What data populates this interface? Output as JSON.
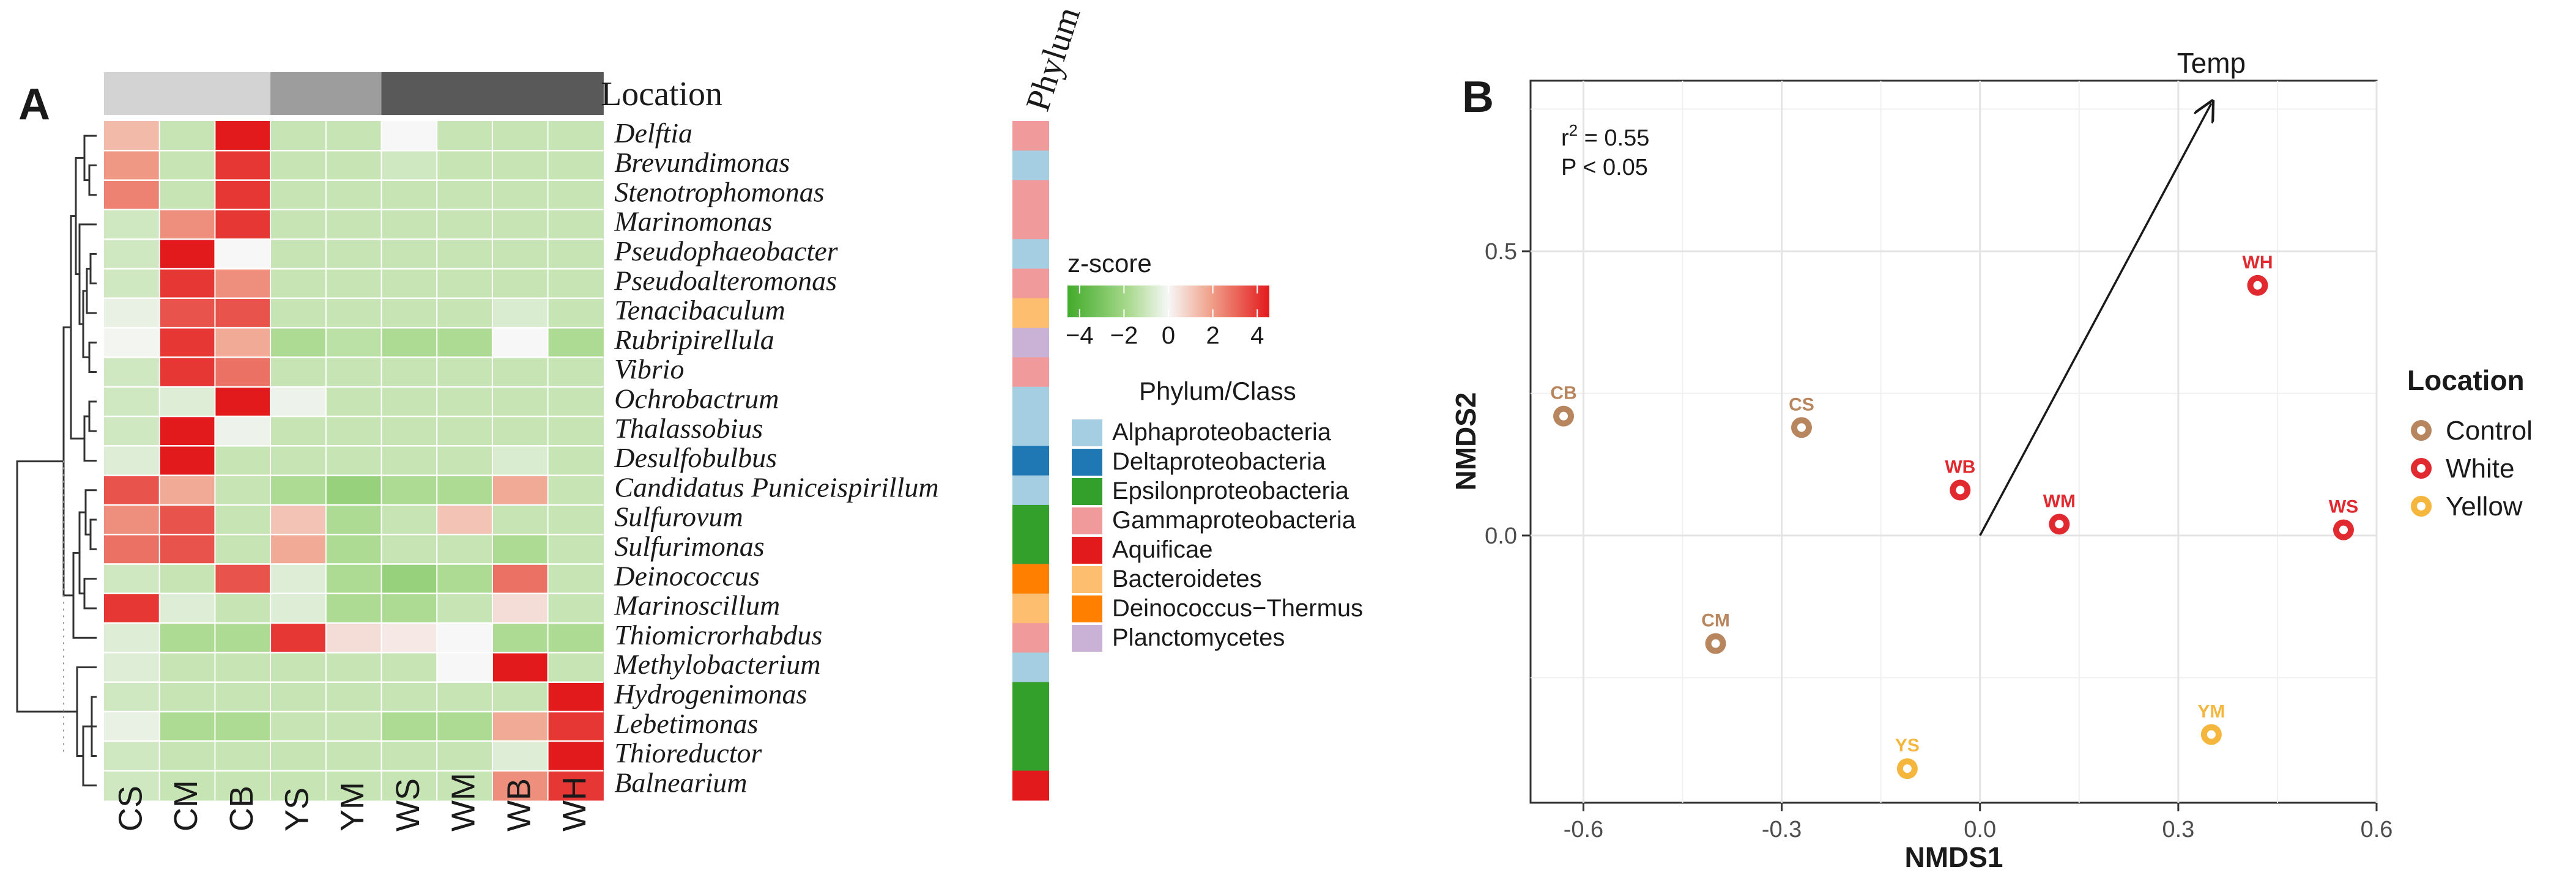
{
  "colors": {
    "location": {
      "Control": "#b8865e",
      "White": "#e02a30",
      "Yellow": "#f5b63d"
    },
    "bars": {
      "CS": "#d3d3d3",
      "CM": "#d3d3d3",
      "CB": "#d3d3d3",
      "YS": "#9d9d9d",
      "YM": "#9d9d9d",
      "WS": "#595959",
      "WM": "#595959",
      "WB": "#595959",
      "WH": "#595959"
    },
    "phylum": {
      "Alphaproteobacteria": "#a6cee3",
      "Deltaproteobacteria": "#1f78b4",
      "Epsilonproteobacteria": "#33a02c",
      "Gammaproteobacteria": "#f19a9c",
      "Aquificae": "#e31a1c",
      "Bacteroidetes": "#fdbf6f",
      "Deinococcus-Thermus": "#ff7f00",
      "Planctomycetes": "#cab2d6"
    },
    "zscale": [
      "#41ab2a",
      "#a8d98c",
      "#f7f7f7",
      "#f0a58f",
      "#e31a1c"
    ]
  },
  "chart_data": [
    {
      "type": "heatmap",
      "panel_label": "A",
      "location_label": "Location",
      "phylum_header": "Phylum",
      "columns": [
        "CS",
        "CM",
        "CB",
        "YS",
        "YM",
        "WS",
        "WM",
        "WB",
        "WH"
      ],
      "rows": [
        {
          "name": "Delftia",
          "phylum": "Gammaproteobacteria",
          "values": [
            1.2,
            -1.0,
            4.0,
            -1.0,
            -1.0,
            0.0,
            -1.0,
            -1.0,
            -1.0
          ]
        },
        {
          "name": "Brevundimonas",
          "phylum": "Alphaproteobacteria",
          "values": [
            1.8,
            -1.0,
            3.5,
            -1.0,
            -1.0,
            -0.8,
            -1.0,
            -1.0,
            -1.0
          ]
        },
        {
          "name": "Stenotrophomonas",
          "phylum": "Gammaproteobacteria",
          "values": [
            2.2,
            -1.0,
            3.5,
            -1.0,
            -1.0,
            -1.0,
            -1.0,
            -1.0,
            -1.0
          ]
        },
        {
          "name": "Marinomonas",
          "phylum": "Gammaproteobacteria",
          "values": [
            -0.8,
            2.0,
            3.5,
            -1.0,
            -1.0,
            -1.0,
            -1.0,
            -1.0,
            -1.0
          ]
        },
        {
          "name": "Pseudophaeobacter",
          "phylum": "Alphaproteobacteria",
          "values": [
            -0.8,
            4.0,
            0.0,
            -1.0,
            -1.0,
            -1.0,
            -1.0,
            -1.0,
            -1.0
          ]
        },
        {
          "name": "Pseudoalteromonas",
          "phylum": "Gammaproteobacteria",
          "values": [
            -0.8,
            3.5,
            2.0,
            -1.0,
            -1.0,
            -1.0,
            -1.0,
            -1.0,
            -1.0
          ]
        },
        {
          "name": "Tenacibaculum",
          "phylum": "Bacteroidetes",
          "values": [
            -0.3,
            3.0,
            3.0,
            -1.0,
            -1.0,
            -1.0,
            -1.0,
            -0.6,
            -1.0
          ]
        },
        {
          "name": "Rubripirellula",
          "phylum": "Planctomycetes",
          "values": [
            -0.1,
            3.5,
            1.5,
            -1.5,
            -1.2,
            -1.5,
            -1.5,
            0.0,
            -1.5
          ]
        },
        {
          "name": "Vibrio",
          "phylum": "Gammaproteobacteria",
          "values": [
            -0.8,
            3.5,
            2.5,
            -1.0,
            -1.0,
            -1.0,
            -1.0,
            -1.0,
            -1.0
          ]
        },
        {
          "name": "Ochrobactrum",
          "phylum": "Alphaproteobacteria",
          "values": [
            -0.8,
            -0.5,
            4.0,
            -0.2,
            -1.0,
            -1.0,
            -1.0,
            -1.0,
            -1.0
          ]
        },
        {
          "name": "Thalassobius",
          "phylum": "Alphaproteobacteria",
          "values": [
            -0.8,
            4.0,
            -0.2,
            -1.0,
            -1.0,
            -1.0,
            -1.0,
            -1.0,
            -1.0
          ]
        },
        {
          "name": "Desulfobulbus",
          "phylum": "Deltaproteobacteria",
          "values": [
            -0.5,
            4.0,
            -1.0,
            -1.0,
            -1.0,
            -1.0,
            -1.0,
            -0.6,
            -1.0
          ]
        },
        {
          "name": "Candidatus Puniceispirillum",
          "phylum": "Alphaproteobacteria",
          "values": [
            3.0,
            1.5,
            -1.0,
            -1.5,
            -2.0,
            -1.5,
            -1.5,
            1.5,
            -1.0
          ]
        },
        {
          "name": "Sulfurovum",
          "phylum": "Epsilonproteobacteria",
          "values": [
            2.0,
            3.0,
            -1.0,
            1.0,
            -1.5,
            -1.0,
            1.0,
            -1.0,
            -1.0
          ]
        },
        {
          "name": "Sulfurimonas",
          "phylum": "Epsilonproteobacteria",
          "values": [
            2.5,
            3.0,
            -1.0,
            1.5,
            -1.5,
            -1.0,
            -1.0,
            -1.5,
            -1.0
          ]
        },
        {
          "name": "Deinococcus",
          "phylum": "Deinococcus-Thermus",
          "values": [
            -0.8,
            -1.0,
            3.0,
            -0.5,
            -1.5,
            -2.0,
            -1.5,
            2.5,
            -1.0
          ]
        },
        {
          "name": "Marinoscillum",
          "phylum": "Bacteroidetes",
          "values": [
            3.5,
            -0.5,
            -1.0,
            -0.5,
            -1.5,
            -1.5,
            -1.0,
            0.5,
            -1.0
          ]
        },
        {
          "name": "Thiomicrorhabdus",
          "phylum": "Gammaproteobacteria",
          "values": [
            -0.5,
            -1.5,
            -1.5,
            3.5,
            0.5,
            0.3,
            0.0,
            -1.5,
            -1.5
          ]
        },
        {
          "name": "Methylobacterium",
          "phylum": "Alphaproteobacteria",
          "values": [
            -0.5,
            -1.0,
            -1.0,
            -1.0,
            -1.0,
            -1.0,
            0.0,
            4.0,
            -1.0
          ]
        },
        {
          "name": "Hydrogenimonas",
          "phylum": "Epsilonproteobacteria",
          "values": [
            -0.8,
            -1.0,
            -1.0,
            -1.0,
            -1.0,
            -1.0,
            -1.0,
            -1.0,
            4.0
          ]
        },
        {
          "name": "Lebetimonas",
          "phylum": "Epsilonproteobacteria",
          "values": [
            -0.3,
            -1.5,
            -1.5,
            -1.0,
            -1.0,
            -1.5,
            -1.5,
            1.5,
            3.5
          ]
        },
        {
          "name": "Thioreductor",
          "phylum": "Epsilonproteobacteria",
          "values": [
            -0.8,
            -1.0,
            -1.0,
            -1.0,
            -1.0,
            -1.0,
            -1.0,
            -0.5,
            4.0
          ]
        },
        {
          "name": "Balnearium",
          "phylum": "Aquificae",
          "values": [
            -0.8,
            -1.0,
            -1.0,
            -1.0,
            -1.0,
            -1.0,
            -1.0,
            2.0,
            3.5
          ]
        }
      ],
      "colorbar": {
        "title": "z-score",
        "ticks": [
          "−4",
          "−2",
          "0",
          "2",
          "4"
        ],
        "range": [
          -4,
          4
        ]
      },
      "phylum_legend_title": "Phylum/Class",
      "phylum_legend": [
        "Alphaproteobacteria",
        "Deltaproteobacteria",
        "Epsilonproteobacteria",
        "Gammaproteobacteria",
        "Aquificae",
        "Bacteroidetes",
        "Deinococcus−Thermus",
        "Planctomycetes"
      ]
    },
    {
      "type": "scatter",
      "panel_label": "B",
      "xlabel": "NMDS1",
      "ylabel": "NMDS2",
      "xlim": [
        -0.68,
        0.6
      ],
      "ylim": [
        -0.47,
        0.8
      ],
      "xticks": [
        -0.6,
        -0.3,
        0.0,
        0.3,
        0.6
      ],
      "xtick_labels": [
        "-0.6",
        "-0.3",
        "0.0",
        "0.3",
        "0.6"
      ],
      "yticks": [
        0.0,
        0.5
      ],
      "ytick_labels": [
        "0.0",
        "0.5"
      ],
      "points": [
        {
          "label": "CB",
          "x": -0.63,
          "y": 0.21,
          "group": "Control"
        },
        {
          "label": "CS",
          "x": -0.27,
          "y": 0.19,
          "group": "Control"
        },
        {
          "label": "CM",
          "x": -0.4,
          "y": -0.19,
          "group": "Control"
        },
        {
          "label": "WB",
          "x": -0.03,
          "y": 0.08,
          "group": "White"
        },
        {
          "label": "WM",
          "x": 0.12,
          "y": 0.02,
          "group": "White"
        },
        {
          "label": "WH",
          "x": 0.42,
          "y": 0.44,
          "group": "White"
        },
        {
          "label": "WS",
          "x": 0.55,
          "y": 0.01,
          "group": "White"
        },
        {
          "label": "YS",
          "x": -0.11,
          "y": -0.41,
          "group": "Yellow"
        },
        {
          "label": "YM",
          "x": 0.35,
          "y": -0.35,
          "group": "Yellow"
        }
      ],
      "vector": {
        "label": "Temp",
        "x": 0.35,
        "y": 0.76
      },
      "annotation": {
        "r2_text": "r",
        "r2_sup": "2",
        "r2_value": " = 0.55",
        "p_text": "P < 0.05"
      },
      "legend_title": "Location",
      "legend": [
        "Control",
        "White",
        "Yellow"
      ]
    }
  ]
}
